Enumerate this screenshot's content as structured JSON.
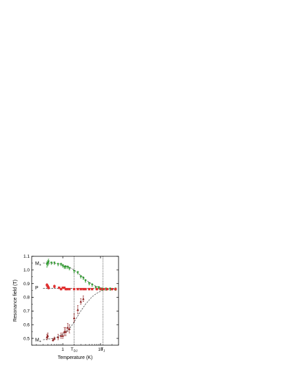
{
  "chart_data": {
    "type": "scatter",
    "title": "",
    "xlabel": "Temperature (K)",
    "ylabel": "Resonance field (T)",
    "xscale": "log",
    "xlim": [
      0.15,
      30
    ],
    "ylim": [
      0.45,
      1.1
    ],
    "x_ticks": [
      1,
      10
    ],
    "x_tick_labels": [
      "1",
      "10"
    ],
    "y_ticks": [
      0.5,
      0.6,
      0.7,
      0.8,
      0.9,
      1.0,
      1.1
    ],
    "y_tick_labels": [
      "0.5",
      "0.6",
      "0.7",
      "0.8",
      "0.9",
      "1.0",
      "1.1"
    ],
    "grid": false,
    "legend": "none",
    "vertical_lines": [
      {
        "x": 2.0,
        "label_main": "T",
        "label_sub": "DJ",
        "style": "dotted"
      },
      {
        "x": 11.5,
        "label_main": "T",
        "label_sub": "J",
        "style": "dotted"
      }
    ],
    "series": [
      {
        "name": "M",
        "name_sub": "+",
        "color": "#2e9b2e",
        "marker": "triangle-down",
        "label_y": 1.05,
        "x": [
          0.38,
          0.4,
          0.42,
          0.5,
          0.6,
          0.75,
          0.9,
          1.0,
          1.1,
          1.2,
          1.35,
          1.5,
          2.0,
          2.5,
          3.0,
          3.5,
          4.0,
          5.0,
          6.0,
          7.5,
          9.0,
          11,
          14,
          18,
          25
        ],
        "y": [
          1.04,
          1.05,
          1.06,
          1.05,
          1.05,
          1.04,
          1.04,
          1.03,
          1.02,
          1.02,
          1.02,
          1.01,
          0.99,
          0.98,
          0.95,
          0.94,
          0.92,
          0.9,
          0.89,
          0.87,
          0.87,
          0.86,
          0.86,
          0.86,
          0.86
        ],
        "err": [
          0.02,
          0.02,
          0.02,
          0.01,
          0.01,
          0.01,
          0.01,
          0.01,
          0.01,
          0.01,
          0.01,
          0.01,
          0.01,
          0.01,
          0.01,
          0.01,
          0.01,
          0.01,
          0.01,
          0.01,
          0.01,
          0.01,
          0.01,
          0.01,
          0.01
        ],
        "fit": {
          "x": [
            0.3,
            0.5,
            0.8,
            1.0,
            1.5,
            2.0,
            3.0,
            4.0,
            5.0,
            7.0,
            10,
            13,
            18,
            25
          ],
          "y": [
            1.05,
            1.05,
            1.045,
            1.04,
            1.02,
            1.0,
            0.96,
            0.93,
            0.91,
            0.885,
            0.87,
            0.865,
            0.86,
            0.86
          ]
        }
      },
      {
        "name": "P",
        "name_sub": "",
        "color": "#e03030",
        "marker": "square",
        "label_y": 0.87,
        "x": [
          0.38,
          0.4,
          0.42,
          0.6,
          0.8,
          0.9,
          1.0,
          1.1,
          1.2,
          1.3,
          1.5,
          2.0,
          2.5,
          3.0,
          3.5,
          4.0,
          5.0,
          6.0,
          8.0,
          10,
          12,
          15,
          20,
          25
        ],
        "y": [
          0.89,
          0.88,
          0.87,
          0.88,
          0.87,
          0.86,
          0.87,
          0.87,
          0.86,
          0.86,
          0.86,
          0.86,
          0.86,
          0.86,
          0.86,
          0.86,
          0.86,
          0.86,
          0.86,
          0.86,
          0.86,
          0.86,
          0.86,
          0.86
        ],
        "err": [
          0.01,
          0.01,
          0.01,
          0.01,
          0.005,
          0.005,
          0.005,
          0.005,
          0.005,
          0.005,
          0.005,
          0.005,
          0.005,
          0.005,
          0.005,
          0.005,
          0.005,
          0.005,
          0.005,
          0.005,
          0.005,
          0.005,
          0.005,
          0.005
        ],
        "fit": {
          "x": [
            0.3,
            25
          ],
          "y": [
            0.865,
            0.865
          ]
        }
      },
      {
        "name": "M",
        "name_sub": "+",
        "color": "#8b1a1a",
        "marker": "triangle-up",
        "label_y": 0.49,
        "x": [
          0.38,
          0.4,
          0.55,
          0.6,
          0.75,
          0.9,
          1.0,
          1.1,
          1.2,
          1.35,
          1.5,
          2.0,
          2.5,
          3.0,
          3.5
        ],
        "y": [
          0.51,
          0.52,
          0.49,
          0.5,
          0.51,
          0.52,
          0.52,
          0.55,
          0.55,
          0.58,
          0.57,
          0.65,
          0.71,
          0.77,
          0.79
        ],
        "err": [
          0.02,
          0.02,
          0.01,
          0.01,
          0.02,
          0.02,
          0.02,
          0.03,
          0.03,
          0.03,
          0.03,
          0.03,
          0.03,
          0.02,
          0.02
        ],
        "fit": {
          "x": [
            0.3,
            0.6,
            1.0,
            1.5,
            2.0,
            3.0,
            4.0,
            6.0,
            8.0,
            11,
            15,
            20,
            25
          ],
          "y": [
            0.49,
            0.5,
            0.53,
            0.57,
            0.62,
            0.7,
            0.75,
            0.805,
            0.83,
            0.85,
            0.858,
            0.86,
            0.86
          ]
        }
      }
    ]
  }
}
